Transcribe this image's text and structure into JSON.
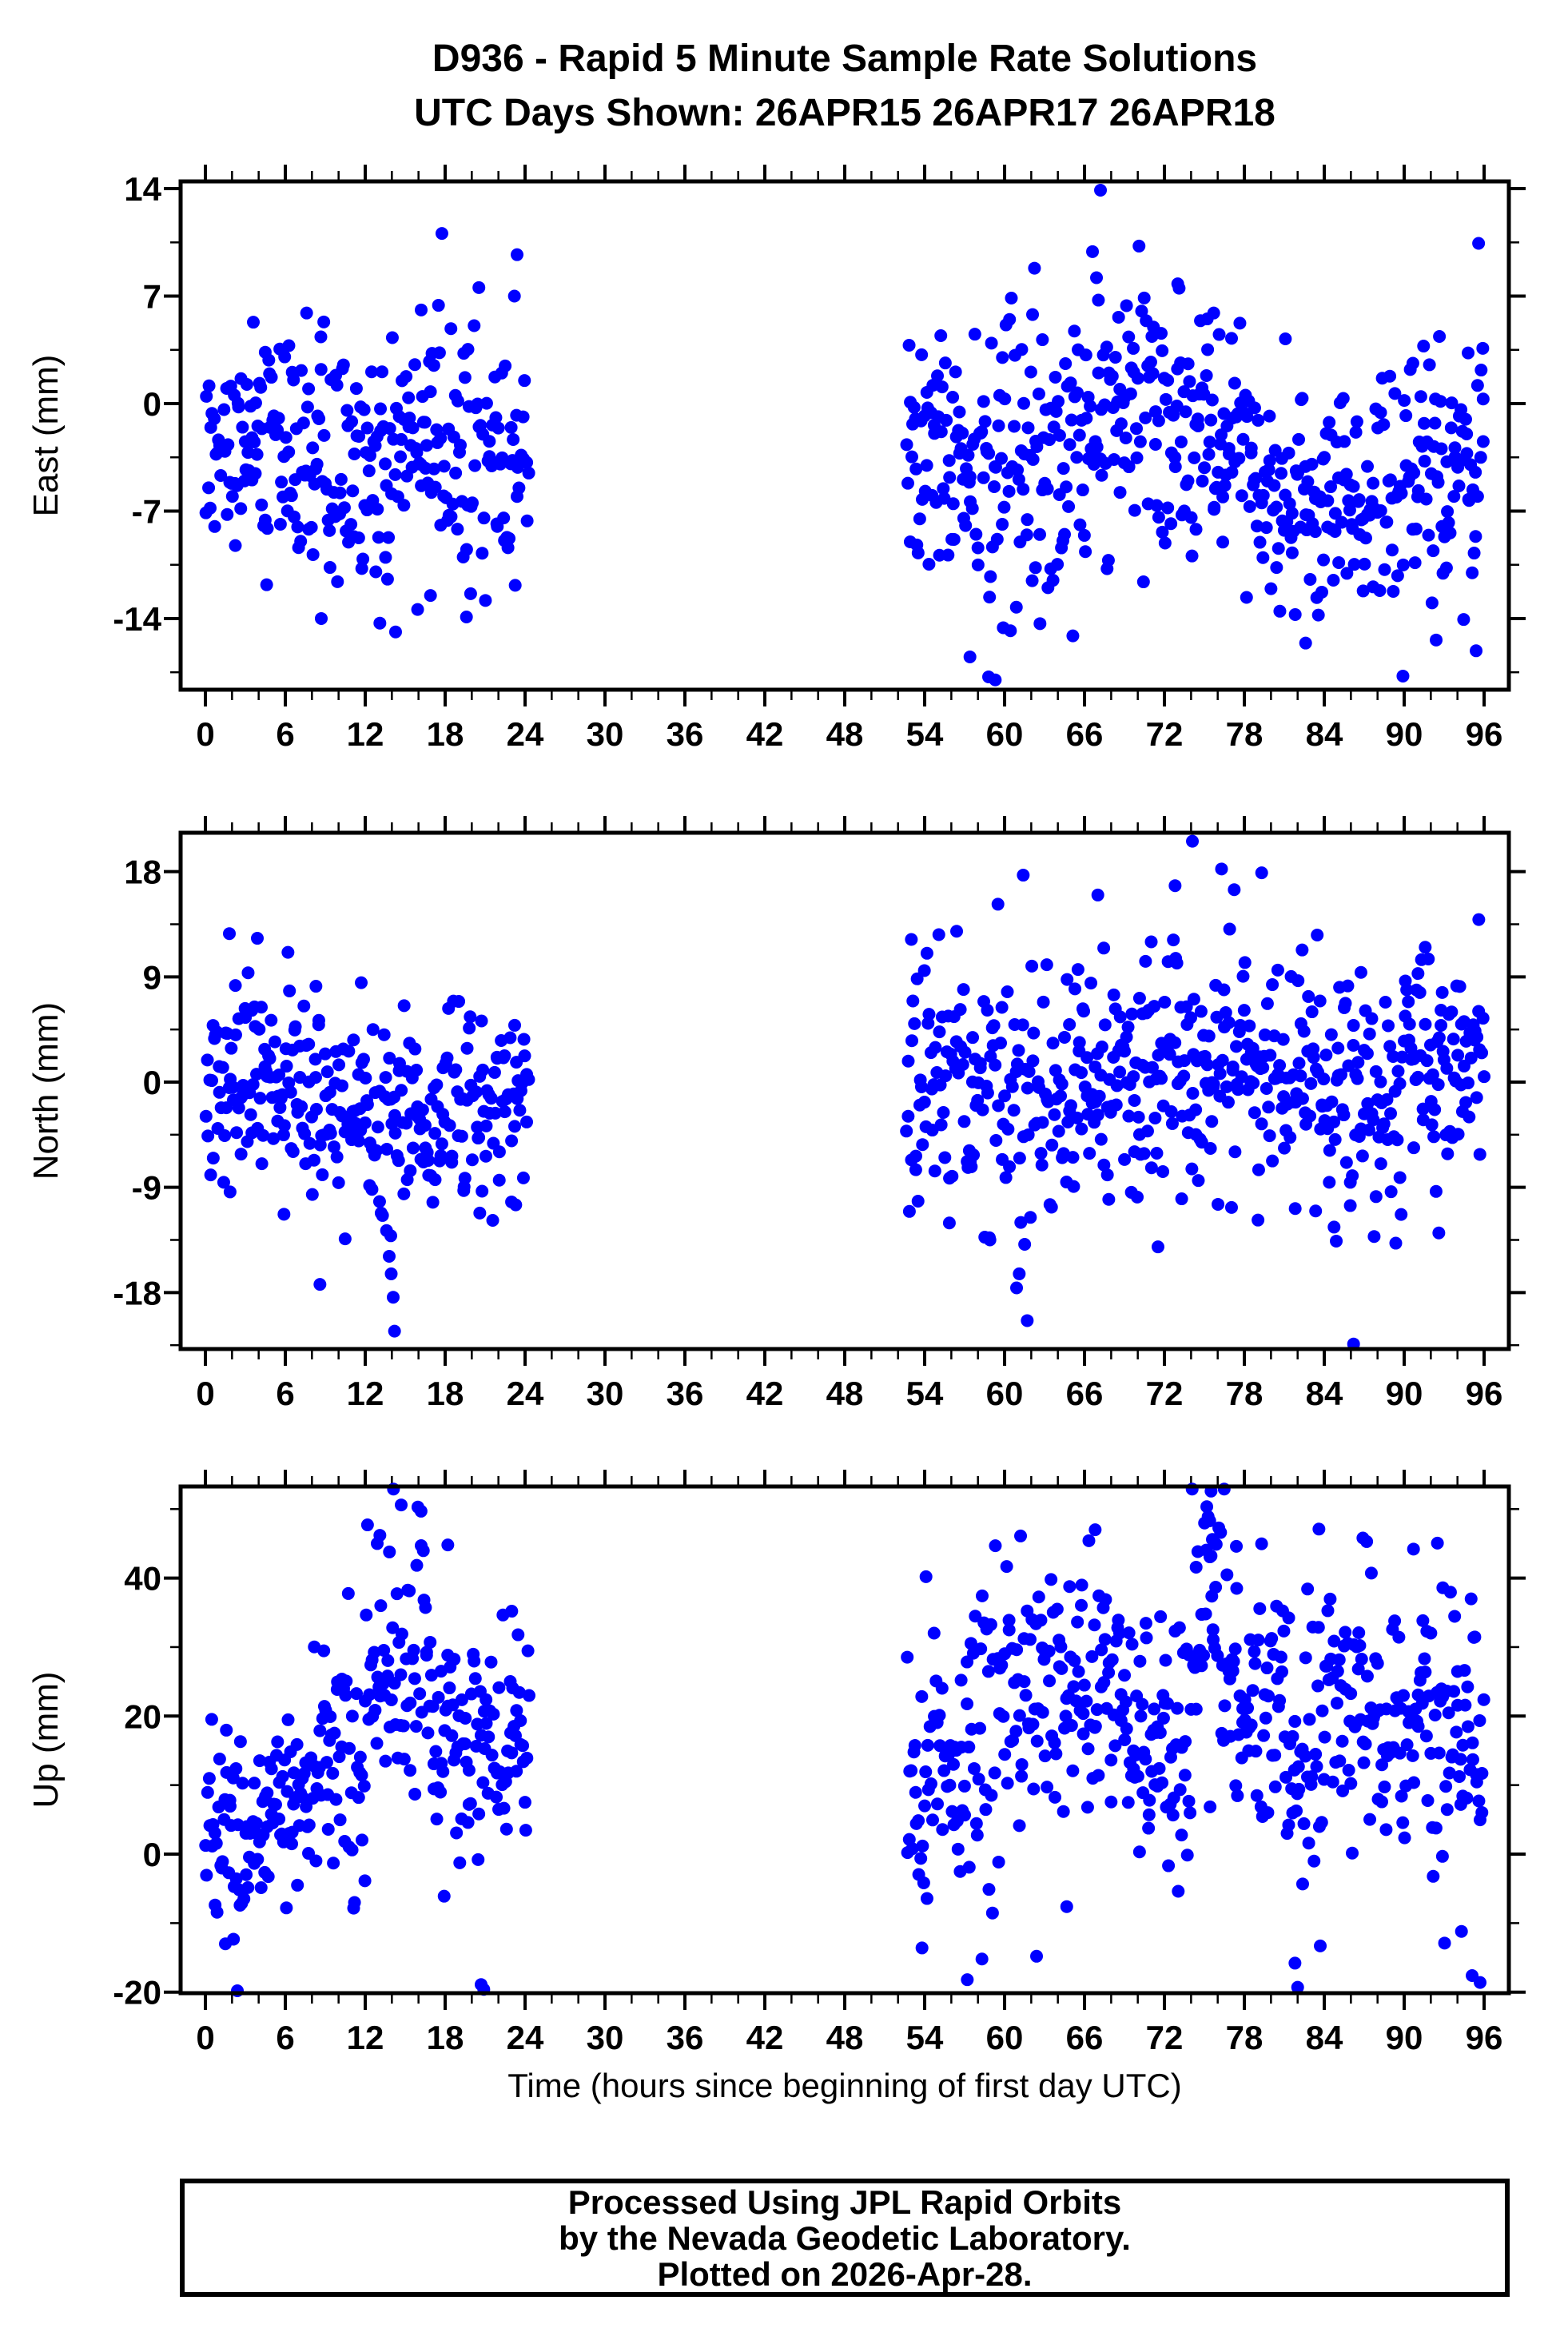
{
  "page": {
    "title_line1": "D936 - Rapid 5 Minute Sample Rate Solutions",
    "title_line2": "UTC Days Shown:  26APR15 26APR17 26APR18",
    "footer_line1": "Processed Using JPL Rapid Orbits",
    "footer_line2": "by the Nevada Geodetic Laboratory.",
    "footer_line3": "Plotted on 2026-Apr-28."
  },
  "chart_data": {
    "type": "scatter",
    "title": "D936 - Rapid 5 Minute Sample Rate Solutions",
    "subtitle": "UTC Days Shown:  26APR15 26APR17 26APR18",
    "xlabel": "Time (hours since beginning of first day UTC)",
    "station": "D936",
    "utc_days_shown": [
      "26APR15",
      "26APR17",
      "26APR18"
    ],
    "sample_rate": "5 minute",
    "data_gap_hours": [
      24.3,
      52.6
    ],
    "x_axis": {
      "min": 0,
      "max": 96,
      "major_step": 6,
      "minor_step": 2,
      "frame_range": [
        -1.86,
        97.86
      ]
    },
    "marker": {
      "color": "#0000FF",
      "radius_px": 8,
      "shape": "circle"
    },
    "seed": 20260428,
    "legend": "none",
    "grid": false,
    "panels": [
      {
        "id": "east",
        "ylabel": "East (mm)",
        "yticks": [
          14,
          7,
          0,
          -7,
          -14
        ],
        "yminor_ticks": [
          10.5,
          3.5,
          -3.5,
          -10.5,
          -17.5
        ],
        "yrange": [
          -18.6,
          14.5
        ],
        "clip": [
          -18.2,
          14.2
        ],
        "segments": [
          [
            0,
            6,
            72,
            -2.8,
            3.4
          ],
          [
            6,
            12,
            72,
            -3.8,
            3.9
          ],
          [
            12,
            18,
            72,
            -2.3,
            4.2
          ],
          [
            18,
            24.3,
            74,
            -3.4,
            4.4
          ],
          [
            52.6,
            58,
            66,
            -3.2,
            4.6
          ],
          [
            58,
            63,
            60,
            -4.5,
            4.8
          ],
          [
            63,
            68,
            62,
            -1.8,
            4.4
          ],
          [
            68,
            72,
            48,
            -1.5,
            4.2
          ],
          [
            72,
            78,
            74,
            -2.0,
            3.8
          ],
          [
            78,
            84,
            72,
            -6.2,
            4.3
          ],
          [
            84,
            90,
            72,
            -5.8,
            4.0
          ],
          [
            90,
            96,
            74,
            -3.6,
            4.4
          ]
        ],
        "outliers": [
          [
            23.4,
            9.7
          ],
          [
            23.2,
            7.0
          ],
          [
            7.6,
            5.9
          ],
          [
            17.5,
            6.4
          ],
          [
            16.2,
            6.1
          ],
          [
            3.6,
            5.3
          ],
          [
            13.1,
            -14.3
          ],
          [
            8.7,
            -14.0
          ],
          [
            19.6,
            -13.9
          ],
          [
            16.9,
            -12.5
          ],
          [
            4.6,
            -11.8
          ],
          [
            67.2,
            13.9
          ],
          [
            66.6,
            9.9
          ],
          [
            66.9,
            8.2
          ],
          [
            62.1,
            5.8
          ],
          [
            57.4,
            -16.5
          ],
          [
            58.8,
            -17.8
          ],
          [
            59.3,
            -18.0
          ],
          [
            59.9,
            -14.6
          ],
          [
            73.0,
            7.8
          ],
          [
            75.7,
            5.9
          ],
          [
            82.6,
            -15.6
          ],
          [
            92.4,
            -15.4
          ],
          [
            95.4,
            -16.1
          ],
          [
            95.9,
            3.6
          ],
          [
            94.8,
            3.3
          ]
        ]
      },
      {
        "id": "north",
        "ylabel": "North (mm)",
        "yticks": [
          18,
          9,
          0,
          -9,
          -18
        ],
        "yminor_ticks": [
          13.5,
          4.5,
          -4.5,
          -13.5,
          -22.5
        ],
        "yrange": [
          -22.8,
          21.3
        ],
        "clip": [
          -22.4,
          21.0
        ],
        "segments": [
          [
            0,
            6,
            74,
            -0.6,
            4.1
          ],
          [
            6,
            12,
            72,
            -1.6,
            4.0
          ],
          [
            12,
            18,
            72,
            -3.4,
            4.8
          ],
          [
            18,
            24.3,
            76,
            -1.0,
            4.0
          ],
          [
            52.6,
            58,
            66,
            -0.8,
            4.8
          ],
          [
            58,
            64,
            66,
            -1.5,
            5.4
          ],
          [
            64,
            69,
            62,
            0.5,
            5.0
          ],
          [
            69,
            72,
            40,
            0.8,
            5.2
          ],
          [
            72,
            78,
            76,
            1.8,
            5.4
          ],
          [
            78,
            84,
            74,
            0.8,
            5.0
          ],
          [
            84,
            90,
            74,
            -1.2,
            5.4
          ],
          [
            90,
            96,
            76,
            2.2,
            4.6
          ]
        ],
        "outliers": [
          [
            1.8,
            12.7
          ],
          [
            3.9,
            12.3
          ],
          [
            6.2,
            11.1
          ],
          [
            11.7,
            8.5
          ],
          [
            8.3,
            8.2
          ],
          [
            13.6,
            -12.7
          ],
          [
            13.8,
            -14.9
          ],
          [
            13.95,
            -16.4
          ],
          [
            14.1,
            -18.4
          ],
          [
            14.2,
            -21.3
          ],
          [
            8.6,
            -17.3
          ],
          [
            5.9,
            -11.3
          ],
          [
            20.6,
            -11.2
          ],
          [
            23.3,
            -10.5
          ],
          [
            53.0,
            12.2
          ],
          [
            56.4,
            12.9
          ],
          [
            61.4,
            17.7
          ],
          [
            67.0,
            16.0
          ],
          [
            61.7,
            -20.4
          ],
          [
            61.1,
            -16.4
          ],
          [
            60.9,
            -17.6
          ],
          [
            58.9,
            -13.5
          ],
          [
            72.8,
            16.8
          ],
          [
            74.1,
            20.6
          ],
          [
            79.3,
            17.9
          ],
          [
            86.2,
            -23.6
          ],
          [
            84.9,
            -13.6
          ],
          [
            92.6,
            -12.9
          ],
          [
            95.6,
            13.9
          ]
        ]
      },
      {
        "id": "up",
        "ylabel": "Up (mm)",
        "yticks": [
          40,
          20,
          0,
          -20
        ],
        "yminor_ticks": [
          50,
          30,
          10,
          -10
        ],
        "yrange": [
          -20.1,
          53.3
        ],
        "clip": [
          -19.9,
          52.9
        ],
        "segments": [
          [
            0,
            4,
            50,
            3,
            6.5
          ],
          [
            4,
            8,
            50,
            8,
            6.5
          ],
          [
            8,
            12,
            50,
            13,
            8.5
          ],
          [
            12,
            17,
            62,
            25,
            9
          ],
          [
            17,
            21,
            50,
            15,
            9
          ],
          [
            21,
            24.3,
            42,
            15,
            8
          ],
          [
            52.6,
            57,
            52,
            12,
            11
          ],
          [
            57,
            63,
            70,
            21,
            10
          ],
          [
            63,
            69,
            72,
            25,
            9.5
          ],
          [
            69,
            72,
            40,
            18,
            9
          ],
          [
            72,
            74,
            26,
            14,
            9
          ],
          [
            74,
            77,
            38,
            30,
            11
          ],
          [
            77,
            81,
            50,
            22,
            9.5
          ],
          [
            81,
            84,
            38,
            12,
            12
          ],
          [
            84,
            88,
            50,
            25,
            9.5
          ],
          [
            88,
            92,
            50,
            21,
            9
          ],
          [
            92,
            96,
            50,
            15,
            10.5
          ]
        ],
        "outliers": [
          [
            14.7,
            50.6
          ],
          [
            13.1,
            46.2
          ],
          [
            12.9,
            45.0
          ],
          [
            16.2,
            44.7
          ],
          [
            18.2,
            44.8
          ],
          [
            23.0,
            35.2
          ],
          [
            2.4,
            -19.8
          ],
          [
            20.7,
            -18.9
          ],
          [
            20.9,
            -19.6
          ],
          [
            1.5,
            -13.0
          ],
          [
            54.1,
            40.2
          ],
          [
            61.2,
            46.1
          ],
          [
            66.8,
            47.0
          ],
          [
            57.2,
            -18.2
          ],
          [
            58.3,
            -15.2
          ],
          [
            53.8,
            -13.6
          ],
          [
            62.4,
            -14.8
          ],
          [
            75.5,
            52.6
          ],
          [
            75.4,
            48.3
          ],
          [
            75.6,
            45.6
          ],
          [
            75.5,
            43.2
          ],
          [
            77.4,
            44.6
          ],
          [
            83.6,
            47.1
          ],
          [
            86.9,
            45.8
          ],
          [
            90.7,
            44.2
          ],
          [
            92.9,
            38.6
          ],
          [
            82.0,
            -19.3
          ],
          [
            81.8,
            -15.8
          ],
          [
            95.1,
            -17.6
          ],
          [
            95.7,
            -18.6
          ],
          [
            94.3,
            -11.2
          ]
        ]
      }
    ]
  }
}
